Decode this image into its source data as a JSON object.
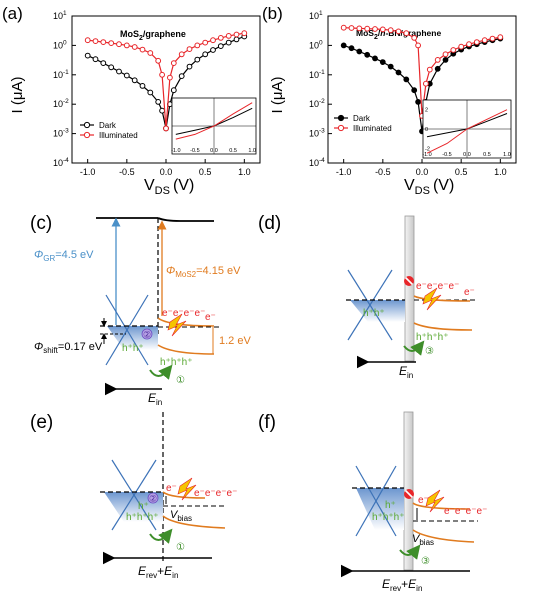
{
  "panels": {
    "a": "(a)",
    "b": "(b)",
    "c": "(c)",
    "d": "(d)",
    "e": "(e)",
    "f": "(f)"
  },
  "chart_data": [
    {
      "type": "line",
      "panel": "(a)",
      "title": "MoS2/graphene",
      "title_main": "MoS",
      "title_sub": "2",
      "title_rest": "/graphene",
      "ylabel": "I (μA)",
      "xlabel_main": "V",
      "xlabel_sub": "DS",
      "xlabel_unit": "(V)",
      "y_scale": "log",
      "xlim": [
        -1.2,
        1.2
      ],
      "ylim": [
        0.0001,
        10
      ],
      "x_ticks": [
        -1.0,
        -0.5,
        0.0,
        0.5,
        1.0
      ],
      "x_tick_labels": [
        "-1.0",
        "-0.5",
        "0.0",
        "0.5",
        "1.0"
      ],
      "y_tick_labels": [
        {
          "base": "10",
          "exp": "1",
          "value": 10
        },
        {
          "base": "10",
          "exp": "0",
          "value": 1
        },
        {
          "base": "10",
          "exp": "-1",
          "value": 0.1
        },
        {
          "base": "10",
          "exp": "-2",
          "value": 0.01
        },
        {
          "base": "10",
          "exp": "-3",
          "value": 0.001
        },
        {
          "base": "10",
          "exp": "-4",
          "value": 0.0001
        }
      ],
      "legend_position": "lower-left",
      "series": [
        {
          "name": "Dark",
          "color": "#000000",
          "x": [
            -1.0,
            -0.9,
            -0.8,
            -0.7,
            -0.6,
            -0.5,
            -0.4,
            -0.3,
            -0.2,
            -0.1,
            -0.05,
            0.0,
            0.05,
            0.1,
            0.2,
            0.3,
            0.4,
            0.5,
            0.6,
            0.7,
            0.8,
            0.9,
            1.0
          ],
          "y": [
            0.45,
            0.34,
            0.25,
            0.18,
            0.13,
            0.095,
            0.065,
            0.042,
            0.025,
            0.012,
            0.006,
            0.0015,
            0.01,
            0.03,
            0.09,
            0.19,
            0.33,
            0.5,
            0.7,
            0.95,
            1.25,
            1.6,
            2.0
          ]
        },
        {
          "name": "Illuminated",
          "color": "#e8262a",
          "x": [
            -1.0,
            -0.9,
            -0.8,
            -0.7,
            -0.6,
            -0.5,
            -0.4,
            -0.3,
            -0.2,
            -0.1,
            -0.05,
            0.0,
            0.05,
            0.1,
            0.2,
            0.3,
            0.4,
            0.5,
            0.6,
            0.7,
            0.8,
            0.9,
            1.0
          ],
          "y": [
            1.5,
            1.4,
            1.3,
            1.2,
            1.1,
            1.0,
            0.88,
            0.72,
            0.55,
            0.3,
            0.1,
            0.0015,
            0.08,
            0.25,
            0.5,
            0.75,
            1.0,
            1.25,
            1.5,
            1.8,
            2.1,
            2.35,
            2.6
          ]
        }
      ],
      "inset": {
        "type": "line",
        "x_tick_labels": [
          "-1.0",
          "-0.5",
          "0.0",
          "0.5",
          "1.0"
        ],
        "y_tick_labels": [],
        "xlim": [
          -1.1,
          1.1
        ],
        "ylim": [
          -3,
          3
        ],
        "series": [
          {
            "name": "Dark",
            "color": "#000000",
            "x": [
              -1.0,
              -0.5,
              0.0,
              0.5,
              1.0
            ],
            "y": [
              -0.9,
              -0.45,
              0.0,
              0.9,
              1.9
            ]
          },
          {
            "name": "Illuminated",
            "color": "#e8262a",
            "x": [
              -1.0,
              -0.5,
              0.0,
              0.5,
              1.0
            ],
            "y": [
              -1.4,
              -0.9,
              0.0,
              1.3,
              2.5
            ]
          }
        ]
      }
    },
    {
      "type": "line",
      "panel": "(b)",
      "title": "MoS2/h-BN/graphene",
      "title_main": "MoS",
      "title_sub": "2",
      "title_slash": "/",
      "title_italic": "h",
      "title_rest": "-BN/graphene",
      "ylabel": "I (μA)",
      "xlabel_main": "V",
      "xlabel_sub": "DS",
      "xlabel_unit": "(V)",
      "y_scale": "log",
      "xlim": [
        -1.2,
        1.2
      ],
      "ylim": [
        0.0001,
        10
      ],
      "x_ticks": [
        -1.0,
        -0.5,
        0.0,
        0.5,
        1.0
      ],
      "x_tick_labels": [
        "-1.0",
        "-0.5",
        "0.0",
        "0.5",
        "1.0"
      ],
      "y_tick_labels": [
        {
          "base": "10",
          "exp": "1",
          "value": 10
        },
        {
          "base": "10",
          "exp": "0",
          "value": 1
        },
        {
          "base": "10",
          "exp": "-1",
          "value": 0.1
        },
        {
          "base": "10",
          "exp": "-2",
          "value": 0.01
        },
        {
          "base": "10",
          "exp": "-3",
          "value": 0.001
        },
        {
          "base": "10",
          "exp": "-4",
          "value": 0.0001
        }
      ],
      "legend_position": "lower-left",
      "series": [
        {
          "name": "Dark",
          "color": "#000000",
          "x": [
            -1.0,
            -0.9,
            -0.8,
            -0.7,
            -0.6,
            -0.5,
            -0.4,
            -0.3,
            -0.2,
            -0.1,
            -0.05,
            0.0,
            0.05,
            0.1,
            0.2,
            0.3,
            0.4,
            0.5,
            0.6,
            0.7,
            0.8,
            0.9,
            1.0
          ],
          "y": [
            1.0,
            0.8,
            0.62,
            0.48,
            0.36,
            0.27,
            0.19,
            0.12,
            0.07,
            0.03,
            0.012,
            0.0012,
            0.012,
            0.05,
            0.16,
            0.32,
            0.52,
            0.72,
            0.92,
            1.1,
            1.3,
            1.5,
            1.7
          ]
        },
        {
          "name": "Illuminated",
          "color": "#e8262a",
          "x": [
            -1.0,
            -0.9,
            -0.8,
            -0.7,
            -0.6,
            -0.5,
            -0.4,
            -0.3,
            -0.2,
            -0.1,
            -0.05,
            0.0,
            0.05,
            0.1,
            0.2,
            0.3,
            0.4,
            0.5,
            0.6,
            0.7,
            0.8,
            0.9,
            1.0
          ],
          "y": [
            4.0,
            3.9,
            3.8,
            3.7,
            3.6,
            3.5,
            3.3,
            3.0,
            2.6,
            1.8,
            1.0,
            0.004,
            0.05,
            0.15,
            0.32,
            0.5,
            0.7,
            0.9,
            1.1,
            1.3,
            1.5,
            1.7,
            1.9
          ]
        }
      ],
      "inset": {
        "type": "line",
        "x_tick_labels": [
          "-1.0",
          "-0.5",
          "0.0",
          "0.5",
          "1.0"
        ],
        "y_tick_labels": [
          "2",
          "0",
          "-2"
        ],
        "xlim": [
          -1.1,
          1.1
        ],
        "ylim": [
          -3,
          3
        ],
        "series": [
          {
            "name": "Dark",
            "color": "#000000",
            "x": [
              -1.0,
              -0.5,
              0.0,
              0.5,
              1.0
            ],
            "y": [
              -0.8,
              -0.4,
              0.0,
              0.8,
              1.6
            ]
          },
          {
            "name": "Illuminated",
            "color": "#e8262a",
            "x": [
              -1.0,
              -0.5,
              0.0,
              0.5,
              1.0
            ],
            "y": [
              -2.5,
              -1.5,
              0.0,
              1.0,
              2.0
            ]
          }
        ]
      }
    }
  ],
  "diagrams": {
    "c": {
      "phi_gr_sym": "Φ",
      "phi_gr_sub": "GR",
      "phi_gr_val": "=4.5 eV",
      "phi_mos2_sym": "Φ",
      "phi_mos2_sub": "MoS2",
      "phi_mos2_val": "=4.15 eV",
      "phi_shift_sym": "Φ",
      "phi_shift_sub": "shift",
      "phi_shift_val": "=0.17 eV",
      "gap": "1.2 eV",
      "electrons": "e⁻e⁻e⁻e⁻",
      "electron_single": "e⁻",
      "holes_well": "h⁺h⁺",
      "holes_row": "h⁺h⁺h⁺",
      "circled": "②",
      "step": "①",
      "field_main": "E",
      "field_sub": "in"
    },
    "d": {
      "electrons": "e⁻e⁻e⁻e⁻",
      "electron_single": "e⁻",
      "holes_well": "h⁺h⁺",
      "holes_row": "h⁺h⁺h⁺",
      "step": "③",
      "field_main": "E",
      "field_sub": "in"
    },
    "e": {
      "electrons": "e⁻e⁻e⁻e⁻",
      "electron_single": "e⁻",
      "holes_well_1": "h⁺",
      "holes_well_2": "h⁺h⁺h⁺",
      "circled": "②",
      "bias_main": "V",
      "bias_sub": "bias",
      "step": "①",
      "field_a_main": "E",
      "field_a_sub": "rev",
      "field_plus": "+",
      "field_b_main": "E",
      "field_b_sub": "in"
    },
    "f": {
      "electrons": "e⁻e⁻e⁻e⁻",
      "electron_single": "e⁻",
      "holes_well_1": "h⁺",
      "holes_well_2": "h⁺h⁺h⁺",
      "bias_main": "V",
      "bias_sub": "bias",
      "step": "③",
      "field_a_main": "E",
      "field_a_sub": "rev",
      "field_plus": "+",
      "field_b_main": "E",
      "field_b_sub": "in"
    }
  },
  "colors": {
    "dark": "#000000",
    "illuminated": "#e8262a",
    "phi_gr": "#4a90c8",
    "phi_mos2": "#e07b1f",
    "band": "#e07b1f",
    "holes": "#5aa832",
    "well": "#7fa6d6",
    "cone": "#3d73b8",
    "circle_purple": "#9a7fd0",
    "lightning": "#f5c400",
    "blocked": "#e8262a"
  }
}
